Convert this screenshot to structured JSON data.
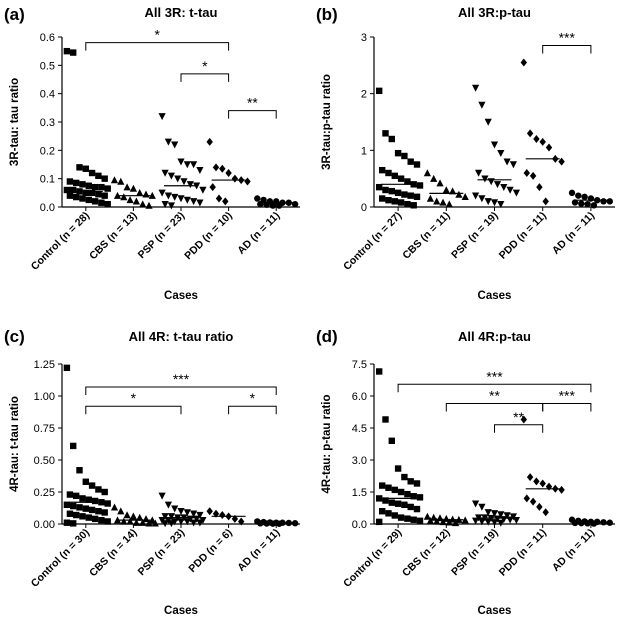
{
  "chart_data": [
    {
      "panel": "(a)",
      "type": "scatter",
      "title": "All 3R: t-tau",
      "ylabel": "3R-tau: tau ratio",
      "xlabel": "Cases",
      "ylim": [
        0,
        0.6
      ],
      "yticks": [
        0,
        0.1,
        0.2,
        0.3,
        0.4,
        0.5,
        0.6
      ],
      "ytick_labels": [
        "0.0",
        "0.1",
        "0.2",
        "0.3",
        "0.4",
        "0.5",
        "0.6"
      ],
      "categories": [
        "Control (n = 28)",
        "CBS (n = 13)",
        "PSP (n = 23)",
        "PDD (n = 10)",
        "AD (n = 11)"
      ],
      "markers": [
        "square",
        "triangle",
        "triangle-down",
        "diamond",
        "circle"
      ],
      "medians": [
        0.055,
        0.04,
        0.075,
        0.095,
        0.015
      ],
      "values": [
        [
          0.55,
          0.545,
          0.14,
          0.135,
          0.12,
          0.11,
          0.1,
          0.09,
          0.085,
          0.08,
          0.075,
          0.07,
          0.07,
          0.065,
          0.06,
          0.06,
          0.055,
          0.05,
          0.05,
          0.045,
          0.04,
          0.04,
          0.035,
          0.03,
          0.025,
          0.02,
          0.015,
          0.01
        ],
        [
          0.095,
          0.09,
          0.07,
          0.065,
          0.05,
          0.045,
          0.04,
          0.04,
          0.035,
          0.025,
          0.02,
          0.01,
          0.005
        ],
        [
          0.32,
          0.23,
          0.22,
          0.16,
          0.15,
          0.15,
          0.13,
          0.12,
          0.11,
          0.1,
          0.09,
          0.08,
          0.075,
          0.06,
          0.05,
          0.04,
          0.035,
          0.03,
          0.025,
          0.02,
          0.015,
          0.01,
          0.005
        ],
        [
          0.23,
          0.14,
          0.135,
          0.12,
          0.1,
          0.095,
          0.09,
          0.07,
          0.03,
          0.02
        ],
        [
          0.03,
          0.025,
          0.02,
          0.02,
          0.015,
          0.015,
          0.01,
          0.01,
          0.008,
          0.005,
          0.005
        ]
      ],
      "significance": [
        {
          "from": 0,
          "to": 3,
          "label": "*",
          "level": 0.58
        },
        {
          "from": 2,
          "to": 3,
          "label": "*",
          "level": 0.47
        },
        {
          "from": 3,
          "to": 4,
          "label": "**",
          "level": 0.34
        }
      ]
    },
    {
      "panel": "(b)",
      "type": "scatter",
      "title": "All 3R:p-tau",
      "ylabel": "3R-tau:p-tau ratio",
      "xlabel": "Cases",
      "ylim": [
        0,
        3
      ],
      "yticks": [
        0,
        1,
        2,
        3
      ],
      "ytick_labels": [
        "0",
        "1",
        "2",
        "3"
      ],
      "categories": [
        "Control (n = 27)",
        "CBS (n = 11)",
        "PSP (n = 19)",
        "PDD (n = 11)",
        "AD (n = 11)"
      ],
      "markers": [
        "square",
        "triangle",
        "triangle-down",
        "diamond",
        "circle"
      ],
      "medians": [
        0.4,
        0.24,
        0.48,
        0.85,
        0.12
      ],
      "values": [
        [
          2.05,
          1.3,
          1.2,
          0.95,
          0.9,
          0.8,
          0.75,
          0.65,
          0.6,
          0.55,
          0.5,
          0.45,
          0.4,
          0.38,
          0.35,
          0.3,
          0.28,
          0.25,
          0.22,
          0.2,
          0.18,
          0.15,
          0.12,
          0.1,
          0.08,
          0.05,
          0.03
        ],
        [
          0.6,
          0.5,
          0.42,
          0.3,
          0.28,
          0.22,
          0.18,
          0.15,
          0.1,
          0.08,
          0.05
        ],
        [
          2.1,
          1.8,
          1.5,
          1.1,
          0.95,
          0.8,
          0.75,
          0.6,
          0.5,
          0.45,
          0.4,
          0.35,
          0.3,
          0.25,
          0.2,
          0.15,
          0.1,
          0.08,
          0.05
        ],
        [
          2.55,
          1.3,
          1.2,
          1.15,
          1.05,
          0.85,
          0.8,
          0.6,
          0.55,
          0.35,
          0.1
        ],
        [
          0.25,
          0.2,
          0.18,
          0.15,
          0.12,
          0.1,
          0.1,
          0.08,
          0.06,
          0.05,
          0.03
        ]
      ],
      "significance": [
        {
          "from": 3,
          "to": 4,
          "label": "***",
          "level": 2.85
        }
      ]
    },
    {
      "panel": "(c)",
      "type": "scatter",
      "title": "All 4R: t-tau ratio",
      "ylabel": "4R-tau: t-tau ratio",
      "xlabel": "Cases",
      "ylim": [
        0,
        1.25
      ],
      "yticks": [
        0,
        0.25,
        0.5,
        0.75,
        1.0,
        1.25
      ],
      "ytick_labels": [
        "0.00",
        "0.25",
        "0.50",
        "0.75",
        "1.00",
        "1.25"
      ],
      "categories": [
        "Control (n = 30)",
        "CBS (n = 14)",
        "PSP (n = 23)",
        "PDD (n = 6)",
        "AD (n = 11)"
      ],
      "markers": [
        "square",
        "triangle",
        "triangle-down",
        "diamond",
        "circle"
      ],
      "medians": [
        0.17,
        0.03,
        0.05,
        0.06,
        0.01
      ],
      "values": [
        [
          1.22,
          0.61,
          0.42,
          0.33,
          0.3,
          0.27,
          0.25,
          0.23,
          0.22,
          0.2,
          0.19,
          0.18,
          0.17,
          0.16,
          0.15,
          0.14,
          0.13,
          0.12,
          0.11,
          0.1,
          0.09,
          0.08,
          0.07,
          0.06,
          0.05,
          0.04,
          0.03,
          0.02,
          0.01,
          0.005
        ],
        [
          0.13,
          0.1,
          0.07,
          0.06,
          0.05,
          0.04,
          0.03,
          0.03,
          0.02,
          0.02,
          0.01,
          0.01,
          0.005,
          0.005
        ],
        [
          0.22,
          0.15,
          0.12,
          0.1,
          0.09,
          0.08,
          0.07,
          0.06,
          0.06,
          0.05,
          0.05,
          0.04,
          0.04,
          0.03,
          0.03,
          0.03,
          0.02,
          0.02,
          0.02,
          0.01,
          0.01,
          0.005,
          0.005
        ],
        [
          0.1,
          0.08,
          0.07,
          0.06,
          0.04,
          0.02
        ],
        [
          0.02,
          0.015,
          0.012,
          0.01,
          0.01,
          0.008,
          0.006,
          0.005,
          0.004,
          0.003,
          0.002
        ]
      ],
      "significance": [
        {
          "from": 0,
          "to": 4,
          "label": "***",
          "level": 1.07
        },
        {
          "from": 0,
          "to": 2,
          "label": "*",
          "level": 0.92
        },
        {
          "from": 3,
          "to": 4,
          "label": "*",
          "level": 0.92
        }
      ]
    },
    {
      "panel": "(d)",
      "type": "scatter",
      "title": "All 4R:p-tau",
      "ylabel": "4R-tau: p-tau ratio",
      "xlabel": "Cases",
      "ylim": [
        0,
        7.5
      ],
      "yticks": [
        0,
        1.5,
        3.0,
        4.5,
        6.0,
        7.5
      ],
      "ytick_labels": [
        "0.0",
        "1.5",
        "3.0",
        "4.5",
        "6.0",
        "7.5"
      ],
      "categories": [
        "Control (n = 29)",
        "CBS (n = 12)",
        "PSP (n = 19)",
        "PDD (n = 11)",
        "AD (n = 11)"
      ],
      "markers": [
        "square",
        "triangle",
        "triangle-down",
        "diamond",
        "circle"
      ],
      "medians": [
        1.2,
        0.2,
        0.28,
        1.65,
        0.08
      ],
      "values": [
        [
          7.15,
          4.9,
          3.9,
          2.6,
          2.2,
          2.0,
          1.9,
          1.8,
          1.7,
          1.6,
          1.5,
          1.4,
          1.3,
          1.25,
          1.2,
          1.1,
          1.0,
          0.95,
          0.9,
          0.8,
          0.7,
          0.6,
          0.5,
          0.4,
          0.3,
          0.25,
          0.2,
          0.15,
          0.1
        ],
        [
          0.35,
          0.3,
          0.28,
          0.25,
          0.22,
          0.2,
          0.18,
          0.15,
          0.12,
          0.1,
          0.08,
          0.05
        ],
        [
          0.95,
          0.8,
          0.55,
          0.5,
          0.45,
          0.4,
          0.35,
          0.3,
          0.3,
          0.28,
          0.25,
          0.22,
          0.2,
          0.18,
          0.15,
          0.12,
          0.1,
          0.08,
          0.05
        ],
        [
          4.9,
          2.2,
          2.0,
          1.9,
          1.75,
          1.65,
          1.6,
          1.2,
          1.05,
          0.8,
          0.55
        ],
        [
          0.2,
          0.15,
          0.12,
          0.1,
          0.1,
          0.08,
          0.06,
          0.05,
          0.04,
          0.03,
          0.02
        ]
      ],
      "significance": [
        {
          "from": 0,
          "to": 4,
          "label": "***",
          "level": 6.55
        },
        {
          "from": 1,
          "to": 3,
          "label": "**",
          "level": 5.65
        },
        {
          "from": 3,
          "to": 4,
          "label": "***",
          "level": 5.65
        },
        {
          "from": 2,
          "to": 3,
          "label": "**",
          "level": 4.65
        }
      ]
    }
  ]
}
